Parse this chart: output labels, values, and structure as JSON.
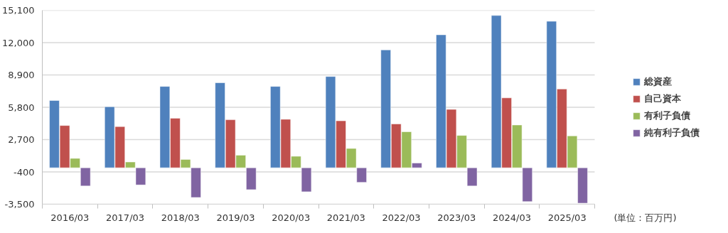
{
  "chart_data": {
    "type": "bar",
    "categories": [
      "2016/03",
      "2017/03",
      "2018/03",
      "2019/03",
      "2020/03",
      "2021/03",
      "2022/03",
      "2023/03",
      "2024/03",
      "2025/03"
    ],
    "series": [
      {
        "name": "総資産",
        "color": "#4f81bd",
        "values": [
          6450,
          5850,
          7800,
          8150,
          7800,
          8750,
          11300,
          12750,
          14600,
          14050
        ]
      },
      {
        "name": "自己資本",
        "color": "#c0504d",
        "values": [
          4050,
          3950,
          4750,
          4600,
          4650,
          4500,
          4200,
          5600,
          6700,
          7550
        ]
      },
      {
        "name": "有利子負債",
        "color": "#9bbb59",
        "values": [
          900,
          550,
          800,
          1200,
          1100,
          1850,
          3450,
          3100,
          4100,
          3050
        ]
      },
      {
        "name": "純有利子負債",
        "color": "#8064a2",
        "values": [
          -1750,
          -1650,
          -2850,
          -2100,
          -2300,
          -1400,
          450,
          -1750,
          -3250,
          -3400
        ]
      }
    ],
    "ylim": [
      -3500,
      15100
    ],
    "yticks": [
      {
        "value": -3500,
        "label": "-3,500"
      },
      -400,
      {
        "value": 2700,
        "label": "2,700"
      },
      {
        "value": 5800,
        "label": "5,800"
      },
      {
        "value": 8900,
        "label": "8,900"
      },
      {
        "value": 12000,
        "label": "12,000"
      },
      {
        "value": 15100,
        "label": "15,100"
      }
    ],
    "grid": "y",
    "legend": "right",
    "annotations": [
      "(単位：百万円)"
    ]
  }
}
